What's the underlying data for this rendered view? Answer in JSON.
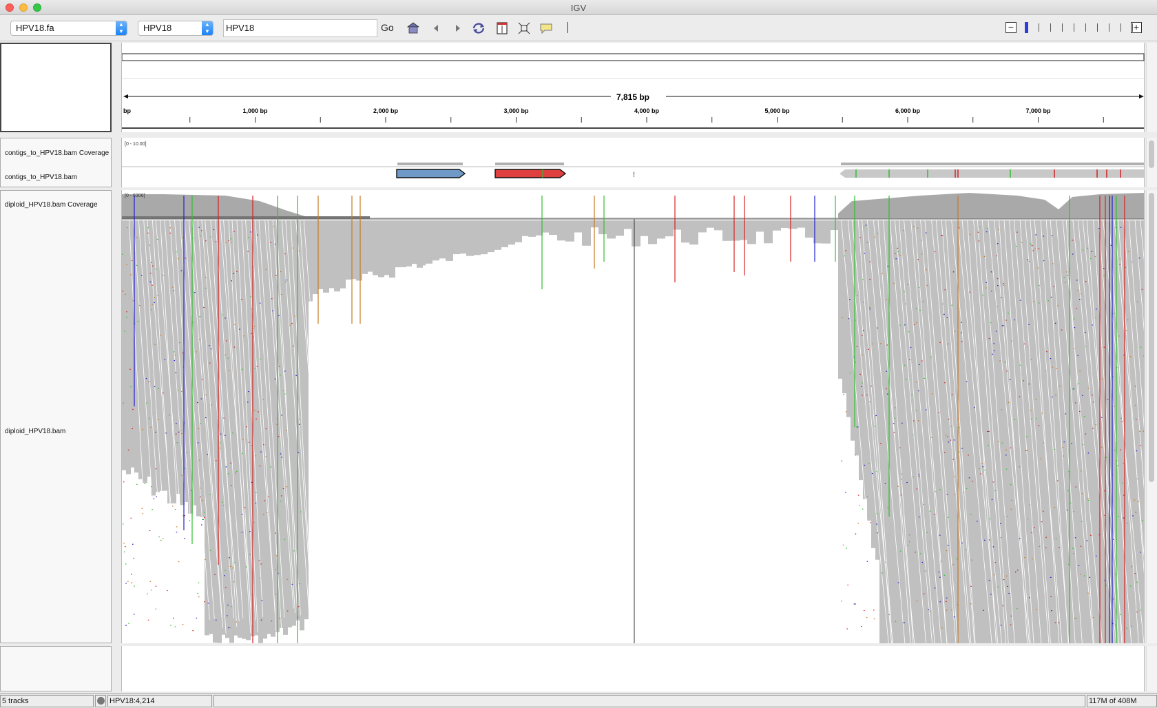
{
  "window": {
    "title": "IGV"
  },
  "toolbar": {
    "genome": "HPV18.fa",
    "chromosome": "HPV18",
    "locus": "HPV18",
    "go_label": "Go"
  },
  "ruler": {
    "span_label": "7,815 bp",
    "start_label": "bp",
    "ticks": [
      "1,000 bp",
      "2,000 bp",
      "3,000 bp",
      "4,000 bp",
      "5,000 bp",
      "6,000 bp",
      "7,000 bp"
    ]
  },
  "tracks": {
    "contigs_coverage": {
      "name": "contigs_to_HPV18.bam Coverage",
      "range": "[0 - 10.00]"
    },
    "contigs_bam": {
      "name": "contigs_to_HPV18.bam"
    },
    "diploid_coverage": {
      "name": "diploid_HPV18.bam Coverage",
      "range": "[0 - 6306]"
    },
    "diploid_bam": {
      "name": "diploid_HPV18.bam"
    }
  },
  "status": {
    "tracks": "5 tracks",
    "position": "HPV18:4,214",
    "memory": "117M of 408M"
  },
  "colors": {
    "read": "#c0c0c0",
    "coverage": "#a9a9a9",
    "contig_blue": "#6f9ac8",
    "contig_red": "#e03f3f",
    "mismatch_green": "#2fbf2f",
    "mismatch_red": "#d42020",
    "mismatch_blue": "#2020d0",
    "mismatch_orange": "#c87820"
  }
}
